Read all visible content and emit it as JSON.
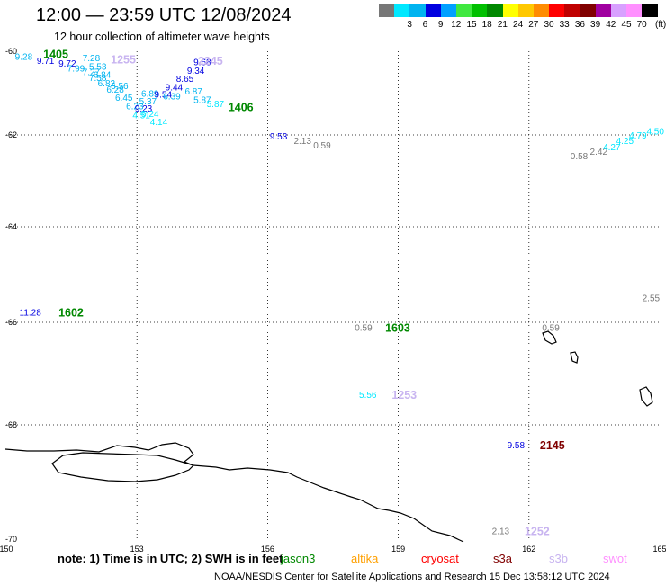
{
  "header": {
    "title": "12:00 — 23:59 UTC 12/08/2024",
    "subtitle": "12 hour collection of altimeter wave heights"
  },
  "color_scale": {
    "unit": "(ft)",
    "bins": [
      {
        "label": "",
        "color": "#777777"
      },
      {
        "label": "3",
        "color": "#00e8ff"
      },
      {
        "label": "6",
        "color": "#00b4f0"
      },
      {
        "label": "9",
        "color": "#0000e0"
      },
      {
        "label": "12",
        "color": "#00a0ff"
      },
      {
        "label": "15",
        "color": "#40e840"
      },
      {
        "label": "18",
        "color": "#00c000"
      },
      {
        "label": "21",
        "color": "#008800"
      },
      {
        "label": "24",
        "color": "#ffff00"
      },
      {
        "label": "27",
        "color": "#ffc800"
      },
      {
        "label": "30",
        "color": "#ff8c00"
      },
      {
        "label": "33",
        "color": "#ff0000"
      },
      {
        "label": "36",
        "color": "#c00000"
      },
      {
        "label": "39",
        "color": "#800000"
      },
      {
        "label": "42",
        "color": "#a000a0"
      },
      {
        "label": "45",
        "color": "#d8a0ff"
      },
      {
        "label": "70",
        "color": "#ff90ff"
      },
      {
        "label": "",
        "color": "#000000"
      }
    ]
  },
  "map": {
    "lon_range": [
      150,
      165
    ],
    "lat_range": [
      -60,
      -70
    ],
    "lon_ticks": [
      150,
      153,
      156,
      159,
      162,
      165
    ],
    "lat_ticks": [
      -60,
      -62,
      -64,
      -66,
      -68,
      -70
    ],
    "measurements": [
      {
        "lon": 150.2,
        "lat": -60.12,
        "value": "9.28",
        "color": "#00b4f0"
      },
      {
        "lon": 150.7,
        "lat": -60.22,
        "value": "9.71",
        "color": "#0000e0"
      },
      {
        "lon": 151.2,
        "lat": -60.28,
        "value": "9.72",
        "color": "#0000e0"
      },
      {
        "lon": 151.4,
        "lat": -60.4,
        "value": "7.99",
        "color": "#00b4f0"
      },
      {
        "lon": 151.75,
        "lat": -60.48,
        "value": "7.27",
        "color": "#00b4f0"
      },
      {
        "lon": 152.0,
        "lat": -60.55,
        "value": "6.84",
        "color": "#00b4f0"
      },
      {
        "lon": 151.9,
        "lat": -60.62,
        "value": "7.58",
        "color": "#00b4f0"
      },
      {
        "lon": 152.1,
        "lat": -60.75,
        "value": "6.82",
        "color": "#00b4f0"
      },
      {
        "lon": 152.4,
        "lat": -60.82,
        "value": "6.56",
        "color": "#00b4f0"
      },
      {
        "lon": 152.3,
        "lat": -60.9,
        "value": "6.28",
        "color": "#00b4f0"
      },
      {
        "lon": 152.5,
        "lat": -61.1,
        "value": "6.45",
        "color": "#00b4f0"
      },
      {
        "lon": 152.75,
        "lat": -61.3,
        "value": "6.23",
        "color": "#00b4f0"
      },
      {
        "lon": 153.05,
        "lat": -61.18,
        "value": "5.37",
        "color": "#00b4f0"
      },
      {
        "lon": 152.95,
        "lat": -61.35,
        "value": "9.23",
        "color": "#0000e0"
      },
      {
        "lon": 152.9,
        "lat": -61.52,
        "value": "4.51",
        "color": "#00e8ff"
      },
      {
        "lon": 153.1,
        "lat": -61.48,
        "value": "5.24",
        "color": "#00e8ff"
      },
      {
        "lon": 153.3,
        "lat": -61.68,
        "value": "4.14",
        "color": "#00e8ff"
      },
      {
        "lon": 153.1,
        "lat": -61.0,
        "value": "6.89",
        "color": "#00b4f0"
      },
      {
        "lon": 153.4,
        "lat": -61.02,
        "value": "9.54",
        "color": "#0000e0"
      },
      {
        "lon": 153.6,
        "lat": -61.06,
        "value": "6.39",
        "color": "#00b4f0"
      },
      {
        "lon": 153.65,
        "lat": -60.85,
        "value": "9.44",
        "color": "#0000e0"
      },
      {
        "lon": 154.1,
        "lat": -60.95,
        "value": "6.87",
        "color": "#00b4f0"
      },
      {
        "lon": 154.3,
        "lat": -61.15,
        "value": "5.87",
        "color": "#00b4f0"
      },
      {
        "lon": 154.6,
        "lat": -61.25,
        "value": "5.87",
        "color": "#00e8ff"
      },
      {
        "lon": 153.9,
        "lat": -60.65,
        "value": "8.65",
        "color": "#0000e0"
      },
      {
        "lon": 154.15,
        "lat": -60.45,
        "value": "9.34",
        "color": "#0000e0"
      },
      {
        "lon": 154.3,
        "lat": -60.25,
        "value": "9.68",
        "color": "#0000e0"
      },
      {
        "lon": 151.75,
        "lat": -60.15,
        "value": "7.28",
        "color": "#00b4f0"
      },
      {
        "lon": 151.9,
        "lat": -60.35,
        "value": "5.53",
        "color": "#00b4f0"
      },
      {
        "lon": 156.05,
        "lat": -62.02,
        "value": "9.53",
        "color": "#0000e0"
      },
      {
        "lon": 156.6,
        "lat": -62.12,
        "value": "2.13",
        "color": "#777777"
      },
      {
        "lon": 157.05,
        "lat": -62.22,
        "value": "0.59",
        "color": "#777777"
      },
      {
        "lon": 162.95,
        "lat": -62.45,
        "value": "0.58",
        "color": "#777777"
      },
      {
        "lon": 163.4,
        "lat": -62.35,
        "value": "2.42",
        "color": "#777777"
      },
      {
        "lon": 163.7,
        "lat": -62.25,
        "value": "4.27",
        "color": "#00e8ff"
      },
      {
        "lon": 164.0,
        "lat": -62.12,
        "value": "4.25",
        "color": "#00e8ff"
      },
      {
        "lon": 164.3,
        "lat": -62.0,
        "value": "4.79",
        "color": "#00e8ff"
      },
      {
        "lon": 164.7,
        "lat": -61.9,
        "value": "4.50",
        "color": "#00e8ff"
      },
      {
        "lon": 150.3,
        "lat": -65.78,
        "value": "11.28",
        "color": "#0000e0"
      },
      {
        "lon": 158.0,
        "lat": -66.1,
        "value": "0.59",
        "color": "#777777"
      },
      {
        "lon": 162.3,
        "lat": -66.1,
        "value": "0.59",
        "color": "#777777"
      },
      {
        "lon": 164.6,
        "lat": -65.48,
        "value": "2.55",
        "color": "#777777"
      },
      {
        "lon": 158.1,
        "lat": -67.4,
        "value": "5.56",
        "color": "#00e8ff"
      },
      {
        "lon": 161.5,
        "lat": -68.35,
        "value": "9.58",
        "color": "#0000e0"
      },
      {
        "lon": 161.15,
        "lat": -69.85,
        "value": "2.13",
        "color": "#777777"
      }
    ],
    "time_labels": [
      {
        "lon": 150.85,
        "lat": -60.05,
        "text": "1405",
        "color": "#008800"
      },
      {
        "lon": 152.4,
        "lat": -60.18,
        "text": "1255",
        "color": "#c8b4f0"
      },
      {
        "lon": 154.4,
        "lat": -60.22,
        "text": "2245",
        "color": "#c8b4f0"
      },
      {
        "lon": 155.1,
        "lat": -61.32,
        "text": "1406",
        "color": "#008800"
      },
      {
        "lon": 151.2,
        "lat": -65.78,
        "text": "1602",
        "color": "#008800"
      },
      {
        "lon": 158.7,
        "lat": -66.1,
        "text": "1603",
        "color": "#008800"
      },
      {
        "lon": 158.85,
        "lat": -67.4,
        "text": "1253",
        "color": "#c8b4f0"
      },
      {
        "lon": 162.25,
        "lat": -68.35,
        "text": "2145",
        "color": "#800000"
      },
      {
        "lon": 161.9,
        "lat": -69.85,
        "text": "1252",
        "color": "#c8b4f0"
      }
    ]
  },
  "footnote": {
    "prefix": "note:  1) Time is in UTC; 2) SWH is in feet",
    "missions": [
      {
        "name": "jason3",
        "color": "#008800"
      },
      {
        "name": "altika",
        "color": "#ffa000"
      },
      {
        "name": "cryosat",
        "color": "#ff0000"
      },
      {
        "name": "s3a",
        "color": "#800000"
      },
      {
        "name": "s3b",
        "color": "#c8b4f0"
      },
      {
        "name": "swot",
        "color": "#ff90ff"
      }
    ]
  },
  "footer": "NOAA/NESDIS Center for Satellite Applications and Research    15 Dec 13:58:12 UTC 2024"
}
